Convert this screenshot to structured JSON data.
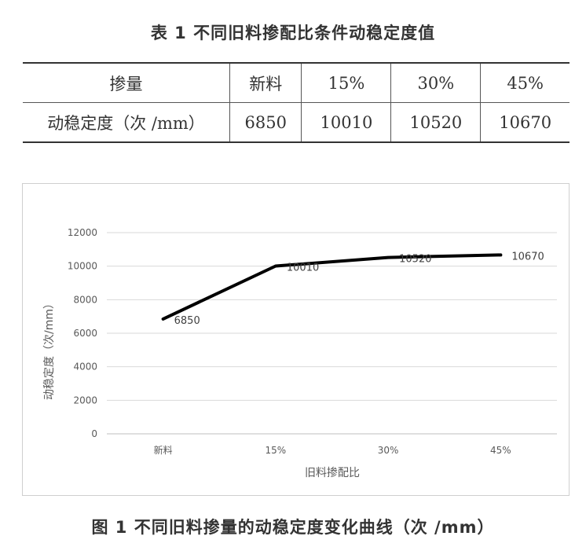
{
  "table": {
    "title": "表 1  不同旧料掺配比条件动稳定度值",
    "header": [
      "掺量",
      "新料",
      "15%",
      "30%",
      "45%"
    ],
    "row": [
      "动稳定度（次 /mm）",
      "6850",
      "10010",
      "10520",
      "10670"
    ]
  },
  "figure": {
    "caption": "图 1  不同旧料掺量的动稳定度变化曲线（次 /mm）"
  },
  "chart_data": {
    "type": "line",
    "categories": [
      "新料",
      "15%",
      "30%",
      "45%"
    ],
    "series": [
      {
        "values": [
          6850,
          10010,
          10520,
          10670
        ]
      }
    ],
    "data_labels": [
      "6850",
      "10010",
      "10520",
      "10670"
    ],
    "xlabel": "旧料掺配比",
    "ylabel": "动稳定度（次/mm）",
    "ylim": [
      0,
      12000
    ],
    "yticks": [
      0,
      2000,
      4000,
      6000,
      8000,
      10000,
      12000
    ],
    "ytick_labels": [
      "0",
      "2000",
      "4000",
      "6000",
      "8000",
      "10000",
      "12000"
    ],
    "grid": true,
    "line_color": "#000000",
    "grid_color": "#d9d9d9",
    "axis_color": "#bfbfbf"
  }
}
